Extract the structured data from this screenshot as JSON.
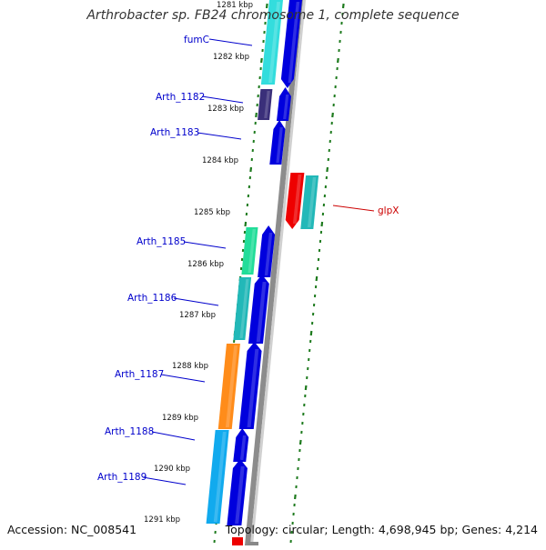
{
  "title": "Arthrobacter sp. FB24 chromosome 1, complete sequence",
  "footer": {
    "accession": "Accession: NC_008541",
    "summary": "Topology: circular; Length: 4,698,945 bp; Genes: 4,214"
  },
  "colors": {
    "backbone": "#8c8c8c",
    "tick_green": "#1d7a1d",
    "gene_label": "#0000cc",
    "highlight_label": "#cc0000",
    "cds_blue": "#0000dd",
    "gene_cyan": "#33dddd",
    "gene_purple": "#3a2f7a",
    "gene_green": "#22dd99",
    "gene_teal": "#22b8b8",
    "gene_orange": "#ff8c1a",
    "gene_sky": "#11aaee",
    "gene_red": "#ee0000"
  },
  "kbp_labels": [
    "1281 kbp",
    "1282 kbp",
    "1283 kbp",
    "1284 kbp",
    "1285 kbp",
    "1286 kbp",
    "1287 kbp",
    "1288 kbp",
    "1289 kbp",
    "1290 kbp",
    "1291 kbp"
  ],
  "gene_labels": [
    {
      "name": "fumC",
      "highlight": false
    },
    {
      "name": "Arth_1182",
      "highlight": false
    },
    {
      "name": "Arth_1183",
      "highlight": false
    },
    {
      "name": "Arth_1185",
      "highlight": false
    },
    {
      "name": "Arth_1186",
      "highlight": false
    },
    {
      "name": "Arth_1187",
      "highlight": false
    },
    {
      "name": "Arth_1188",
      "highlight": false
    },
    {
      "name": "Arth_1189",
      "highlight": false
    },
    {
      "name": "glpX",
      "highlight": true
    }
  ]
}
